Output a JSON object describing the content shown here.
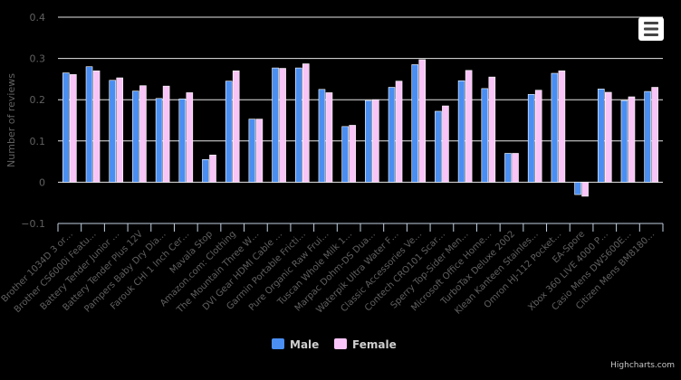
{
  "colors": {
    "background": "#000000",
    "male": "#4a8ef2",
    "female": "#f9c4f7",
    "grid": "#e6e6e6",
    "axis_text": "#606060",
    "legend_text": "#cfcfcf",
    "credits": "#c8c8c8"
  },
  "menu": {
    "icon": "hamburger-icon"
  },
  "credits": "Highcharts.com",
  "chart_data": {
    "type": "bar",
    "title": "",
    "xlabel": "",
    "ylabel": "Number of reviews",
    "ylim": [
      -0.1,
      0.4
    ],
    "yticks": [
      -0.1,
      0,
      0.1,
      0.2,
      0.3,
      0.4
    ],
    "ytick_labels": [
      "−0.1",
      "0",
      "0.1",
      "0.2",
      "0.3",
      "0.4"
    ],
    "grid": true,
    "legend": "bottom-center",
    "categories": [
      "Brother 1034D 3 or…",
      "Brother CS6000i Featu…",
      "Battery Tender Junior …",
      "Battery Tender Plus 12V",
      "Pampers Baby Dry Dia…",
      "Farouk CHI 1 Inch Cer…",
      "Mavala Stop",
      "Amazon.com: Clothing",
      "The Mountain Three W…",
      "DVI Gear HDMI Cable …",
      "Garmin Portable Fricti…",
      "Pure Organic Raw Frui…",
      "Tuscan Whole Milk 1…",
      "Marpac Dohm-DS Dua…",
      "Waterpik Ultra Water F…",
      "Classic Accessories Ve…",
      "Contech CRO101 Scar…",
      "Sperry Top-Sider Men…",
      "Microsoft Office Home…",
      "TurboTax Deluxe 2002",
      "Klean Kanteen Stainles…",
      "Omron HJ-112 Pocket…",
      "EA-Spore",
      "Xbox 360 LIVE 4000 P…",
      "Casio Mens DW5600E…",
      "Citizen Mens BM8180…"
    ],
    "series": [
      {
        "name": "Male",
        "values": [
          0.265,
          0.28,
          0.247,
          0.221,
          0.203,
          0.202,
          0.055,
          0.245,
          0.153,
          0.277,
          0.277,
          0.225,
          0.135,
          0.198,
          0.23,
          0.285,
          0.172,
          0.246,
          0.227,
          0.07,
          0.213,
          0.264,
          -0.03,
          0.226,
          0.198,
          0.22
        ]
      },
      {
        "name": "Female",
        "values": [
          0.261,
          0.27,
          0.253,
          0.234,
          0.233,
          0.217,
          0.066,
          0.27,
          0.153,
          0.276,
          0.287,
          0.217,
          0.138,
          0.2,
          0.245,
          0.297,
          0.185,
          0.271,
          0.255,
          0.07,
          0.223,
          0.27,
          -0.034,
          0.218,
          0.207,
          0.23
        ]
      }
    ]
  }
}
